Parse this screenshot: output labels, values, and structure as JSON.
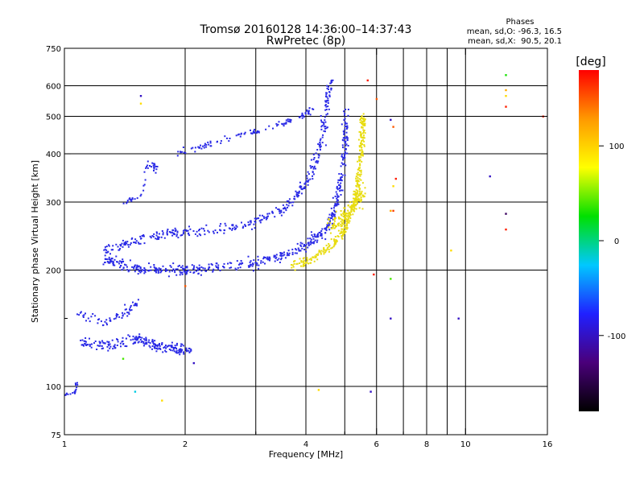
{
  "chart_data": {
    "type": "scatter",
    "title": "Tromsø 20160128 14:36:00–14:37:43",
    "subtitle": "RwPretec (8p)",
    "xlabel": "Frequency [MHz]",
    "ylabel": "Stationary phase Virtual Height [km]",
    "x_scale": "log",
    "y_scale": "log",
    "xlim": [
      1,
      16
    ],
    "ylim": [
      75,
      750
    ],
    "x_ticks": [
      1,
      2,
      4,
      6,
      8,
      10,
      16
    ],
    "x_minor": [
      3,
      5,
      7,
      9
    ],
    "y_ticks": [
      75,
      100,
      200,
      300,
      400,
      500,
      600,
      750
    ],
    "y_minor": [
      150
    ],
    "grid": true,
    "phase_box": {
      "title": "Phases",
      "line_o": "mean, sd,O: -96.3, 16.5",
      "line_x": "mean, sd,X:  90.5, 20.1"
    },
    "colorbar": {
      "label": "[deg]",
      "min": -180,
      "max": 180,
      "ticks": [
        100,
        0,
        -100
      ],
      "colors": [
        "#000000",
        "#4a007a",
        "#2020ff",
        "#00c8ff",
        "#00e000",
        "#ffff00",
        "#ff9900",
        "#ff0000"
      ]
    },
    "series": [
      {
        "phase": -100,
        "color": "#2a2ae6",
        "trace": [
          [
            1.26,
            215
          ],
          [
            1.4,
            205
          ],
          [
            1.6,
            201
          ],
          [
            1.9,
            200
          ],
          [
            2.2,
            201
          ],
          [
            2.7,
            205
          ],
          [
            3.2,
            212
          ],
          [
            3.7,
            222
          ],
          [
            4.1,
            235
          ],
          [
            4.5,
            255
          ],
          [
            4.75,
            290
          ],
          [
            4.9,
            340
          ],
          [
            5.0,
            420
          ],
          [
            5.05,
            520
          ]
        ],
        "spread": 0.05,
        "n": 520
      },
      {
        "phase": -100,
        "color": "#2a2ae6",
        "trace": [
          [
            1.26,
            225
          ],
          [
            1.5,
            240
          ],
          [
            1.8,
            248
          ],
          [
            2.0,
            250
          ],
          [
            2.4,
            252
          ],
          [
            2.9,
            262
          ],
          [
            3.4,
            282
          ],
          [
            3.8,
            310
          ],
          [
            4.1,
            350
          ],
          [
            4.35,
            420
          ],
          [
            4.5,
            530
          ],
          [
            4.6,
            620
          ]
        ],
        "spread": 0.05,
        "n": 360
      },
      {
        "phase": -100,
        "color": "#2a2ae6",
        "trace": [
          [
            1.9,
            402
          ],
          [
            2.2,
            418
          ],
          [
            2.6,
            438
          ],
          [
            3.0,
            458
          ],
          [
            3.5,
            478
          ],
          [
            3.9,
            500
          ],
          [
            4.2,
            525
          ]
        ],
        "spread": 0.025,
        "n": 110
      },
      {
        "phase": 95,
        "color": "#e8dc10",
        "trace": [
          [
            3.7,
            205
          ],
          [
            4.2,
            215
          ],
          [
            4.7,
            235
          ],
          [
            5.0,
            255
          ],
          [
            5.25,
            290
          ],
          [
            5.4,
            340
          ],
          [
            5.5,
            400
          ],
          [
            5.55,
            470
          ],
          [
            5.55,
            495
          ]
        ],
        "spread": 0.04,
        "n": 330
      },
      {
        "phase": 95,
        "color": "#e8dc10",
        "trace": [
          [
            4.6,
            260
          ],
          [
            5.0,
            275
          ],
          [
            5.35,
            300
          ],
          [
            5.55,
            320
          ]
        ],
        "spread": 0.07,
        "n": 140
      },
      {
        "phase": -105,
        "color": "#2a2ae6",
        "trace": [
          [
            1.08,
            130
          ],
          [
            1.3,
            128
          ],
          [
            1.5,
            132
          ],
          [
            1.7,
            128
          ],
          [
            1.9,
            125
          ],
          [
            2.05,
            124
          ]
        ],
        "spread": 0.05,
        "n": 210
      },
      {
        "phase": -105,
        "color": "#2a2ae6",
        "trace": [
          [
            1.1,
            155
          ],
          [
            1.25,
            145
          ],
          [
            1.42,
            155
          ],
          [
            1.5,
            165
          ]
        ],
        "spread": 0.06,
        "n": 60
      },
      {
        "phase": -110,
        "color": "#2a2ae6",
        "trace": [
          [
            1.0,
            95
          ],
          [
            1.06,
            96
          ],
          [
            1.08,
            103
          ]
        ],
        "spread": 0.02,
        "n": 20
      },
      {
        "phase": -100,
        "color": "#2a2ae6",
        "trace": [
          [
            1.4,
            300
          ],
          [
            1.55,
            310
          ],
          [
            1.62,
            380
          ],
          [
            1.7,
            365
          ]
        ],
        "spread": 0.03,
        "n": 40
      }
    ],
    "scattered_points": [
      {
        "x": 1.55,
        "y": 565,
        "phase": -100
      },
      {
        "x": 1.55,
        "y": 540,
        "phase": 95
      },
      {
        "x": 6.5,
        "y": 490,
        "phase": -100
      },
      {
        "x": 6.6,
        "y": 470,
        "phase": 150
      },
      {
        "x": 6.6,
        "y": 330,
        "phase": 95
      },
      {
        "x": 6.7,
        "y": 345,
        "phase": 170
      },
      {
        "x": 6.5,
        "y": 285,
        "phase": 120
      },
      {
        "x": 6.6,
        "y": 285,
        "phase": 160
      },
      {
        "x": 6.5,
        "y": 190,
        "phase": 40
      },
      {
        "x": 6.5,
        "y": 150,
        "phase": -100
      },
      {
        "x": 6.0,
        "y": 555,
        "phase": 150
      },
      {
        "x": 5.7,
        "y": 620,
        "phase": 170
      },
      {
        "x": 5.9,
        "y": 195,
        "phase": 170
      },
      {
        "x": 5.8,
        "y": 97,
        "phase": -100
      },
      {
        "x": 9.6,
        "y": 150,
        "phase": -100
      },
      {
        "x": 9.2,
        "y": 225,
        "phase": 95
      },
      {
        "x": 11.5,
        "y": 350,
        "phase": -100
      },
      {
        "x": 12.6,
        "y": 640,
        "phase": 30
      },
      {
        "x": 12.6,
        "y": 585,
        "phase": 120
      },
      {
        "x": 12.6,
        "y": 565,
        "phase": 95
      },
      {
        "x": 12.6,
        "y": 530,
        "phase": 170
      },
      {
        "x": 12.6,
        "y": 280,
        "phase": -140
      },
      {
        "x": 12.6,
        "y": 255,
        "phase": 170
      },
      {
        "x": 15.6,
        "y": 500,
        "phase": 170
      },
      {
        "x": 4.3,
        "y": 98,
        "phase": 95
      },
      {
        "x": 1.75,
        "y": 92,
        "phase": 95
      },
      {
        "x": 1.5,
        "y": 97,
        "phase": -20
      },
      {
        "x": 2.1,
        "y": 115,
        "phase": -100
      },
      {
        "x": 2.0,
        "y": 182,
        "phase": 150
      },
      {
        "x": 1.4,
        "y": 118,
        "phase": 40
      }
    ]
  }
}
